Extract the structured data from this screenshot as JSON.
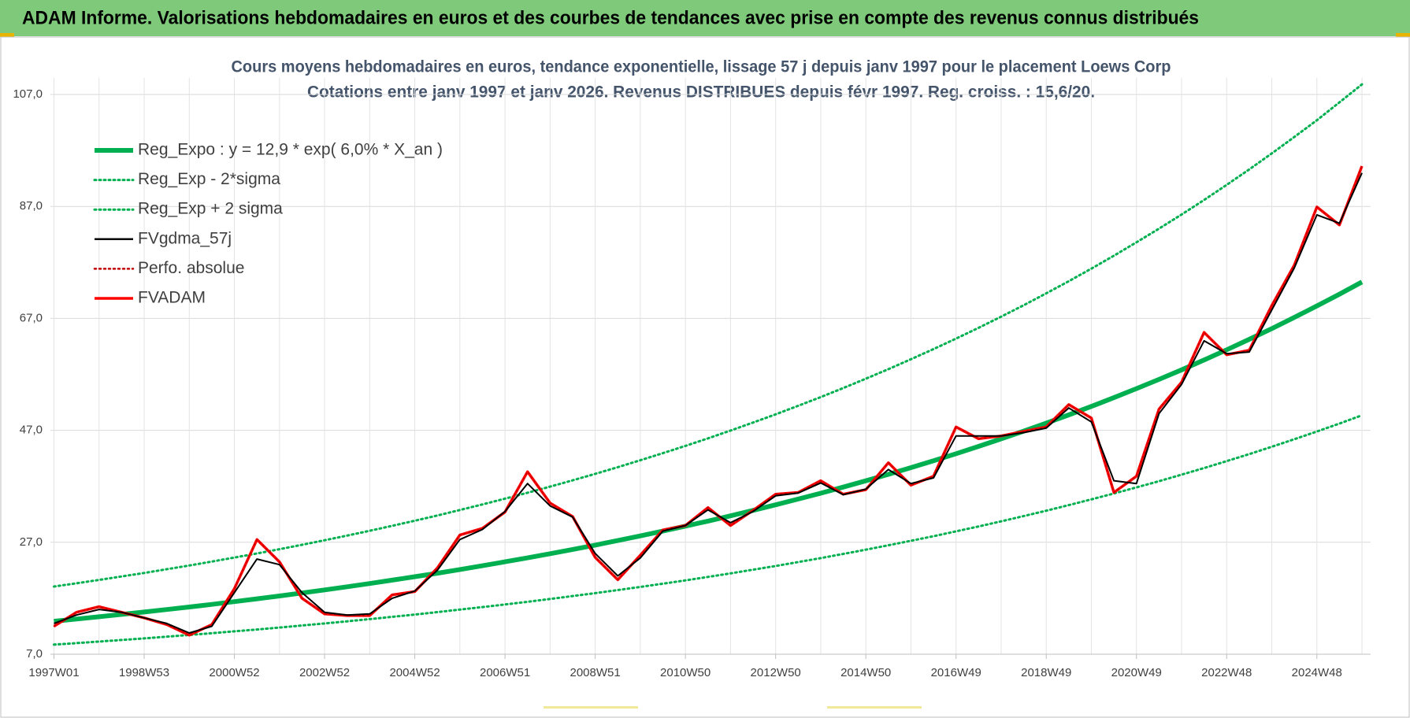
{
  "header": {
    "title": "ADAM Informe. Valorisations hebdomadaires en euros et des courbes de tendances avec prise en compte des revenus connus distribués"
  },
  "chart_data": {
    "type": "line",
    "title": "Cours moyens hebdomadaires en euros, tendance exponentielle, lissage 57 j depuis janv 1997 pour le placement Loews Corp",
    "subtitle": "Cotations entre janv 1997 et janv 2026. Revenus DISTRIBUES depuis févr 1997. Reg. croiss. : 15,6/20.",
    "categories": [
      "1997W01",
      null,
      null,
      null,
      "1998W53",
      null,
      null,
      null,
      "2000W52",
      null,
      null,
      null,
      "2002W52",
      null,
      null,
      null,
      "2004W52",
      null,
      null,
      null,
      "2006W51",
      null,
      null,
      null,
      "2008W51",
      null,
      null,
      null,
      "2010W50",
      null,
      null,
      null,
      "2012W50",
      null,
      null,
      null,
      "2014W50",
      null,
      null,
      null,
      "2016W49",
      null,
      null,
      null,
      "2018W49",
      null,
      null,
      null,
      "2020W49",
      null,
      null,
      null,
      "2022W48",
      null,
      null,
      null,
      "2024W48",
      null,
      null
    ],
    "ylim": [
      7,
      110
    ],
    "yticks": [
      {
        "value": 7,
        "label": "7,0"
      },
      {
        "value": 27,
        "label": "27,0"
      },
      {
        "value": 47,
        "label": "47,0"
      },
      {
        "value": 67,
        "label": "67,0"
      },
      {
        "value": 87,
        "label": "87,0"
      },
      {
        "value": 107,
        "label": "107,0"
      }
    ],
    "grid": true,
    "legend": "top-left",
    "series": [
      {
        "name": "Reg_Expo : y = 12,9 * exp( 6,0% *  X_an )",
        "color": "#00b050",
        "line_style": "solid",
        "values": [
          12.9,
          13.29,
          13.7,
          14.12,
          14.54,
          14.99,
          15.44,
          15.91,
          16.4,
          16.9,
          17.41,
          17.94,
          18.49,
          19.05,
          19.63,
          20.23,
          20.85,
          21.48,
          22.14,
          22.81,
          23.51,
          24.22,
          24.96,
          25.72,
          26.5,
          27.31,
          28.14,
          29,
          29.88,
          30.79,
          31.73,
          32.7,
          33.69,
          34.72,
          35.77,
          36.86,
          37.99,
          39.14,
          40.34,
          41.56,
          42.83,
          44.13,
          45.48,
          46.86,
          48.29,
          49.76,
          51.28,
          52.84,
          54.45,
          56.1,
          57.81,
          59.57,
          61.39,
          63.26,
          65.18,
          67.17,
          69.22,
          71.32,
          73.5
        ]
      },
      {
        "name": "Reg_Exp - 2*sigma",
        "color": "#00b050",
        "line_style": "dotted",
        "values": [
          8.72,
          8.98,
          9.26,
          9.55,
          9.83,
          10.13,
          10.44,
          10.76,
          11.09,
          11.42,
          11.77,
          12.13,
          12.5,
          12.88,
          13.27,
          13.68,
          14.09,
          14.52,
          14.97,
          15.42,
          15.89,
          16.37,
          16.87,
          17.39,
          17.91,
          18.46,
          19.02,
          19.6,
          20.2,
          20.81,
          21.45,
          22.11,
          22.77,
          23.47,
          24.18,
          24.92,
          25.68,
          26.46,
          27.27,
          28.09,
          28.95,
          29.83,
          30.74,
          31.68,
          32.64,
          33.64,
          34.67,
          35.72,
          36.81,
          37.92,
          39.08,
          40.27,
          41.5,
          42.76,
          44.06,
          45.41,
          46.79,
          48.21,
          49.69
        ]
      },
      {
        "name": "Reg_Exp + 2 sigma",
        "color": "#00b050",
        "line_style": "dotted",
        "values": [
          19.09,
          19.67,
          20.28,
          20.9,
          21.52,
          22.19,
          22.85,
          23.55,
          24.27,
          25.01,
          25.77,
          26.55,
          27.37,
          28.19,
          29.05,
          29.94,
          30.86,
          31.79,
          32.77,
          33.76,
          34.79,
          35.85,
          36.94,
          38.07,
          39.22,
          40.42,
          41.65,
          42.92,
          44.22,
          45.57,
          46.96,
          48.4,
          49.86,
          51.39,
          52.94,
          54.55,
          56.23,
          57.93,
          59.7,
          61.51,
          63.39,
          65.31,
          67.31,
          69.35,
          71.47,
          73.64,
          75.89,
          78.2,
          80.59,
          83.03,
          85.56,
          88.16,
          90.86,
          93.62,
          96.47,
          99.41,
          102.4,
          105.6,
          108.8
        ]
      },
      {
        "name": "FVgdma_57j",
        "color": "#000000",
        "line_style": "solid",
        "values": [
          12.5,
          14,
          15,
          14.5,
          13.5,
          12.5,
          10.8,
          12,
          18,
          24,
          23,
          18,
          14.5,
          14,
          14.2,
          17,
          18.3,
          22,
          27.5,
          29.3,
          32.5,
          37.5,
          33.5,
          31.5,
          25,
          21,
          24.2,
          29,
          30,
          32.8,
          30.5,
          32.5,
          35.3,
          35.8,
          37.6,
          35.5,
          36.5,
          40,
          37.5,
          38.5,
          46,
          46,
          46,
          46.6,
          47.4,
          51,
          48.5,
          38,
          37.5,
          50,
          55.2,
          63,
          60.7,
          61,
          68.5,
          76,
          85.5,
          84,
          93
        ]
      },
      {
        "name": "Perfo. absolue",
        "color": "#c00000",
        "line_style": "dotted",
        "values": [
          12,
          14.5,
          15.5,
          14.5,
          13.5,
          12.3,
          10.4,
          12.3,
          18.7,
          27.5,
          23.5,
          17,
          14.2,
          13.9,
          13.9,
          17.6,
          18.2,
          22.4,
          28.3,
          29.5,
          32.4,
          39.6,
          34,
          31.6,
          24.3,
          20.3,
          24.7,
          29.2,
          30,
          33.2,
          30,
          32.7,
          35.6,
          35.9,
          38,
          35.6,
          36.4,
          41.2,
          37.2,
          38.8,
          47.6,
          45.5,
          46,
          46.8,
          47.6,
          51.6,
          49.2,
          35.9,
          38.8,
          50.8,
          55.6,
          64.5,
          60.5,
          61.3,
          69.3,
          76.5,
          86.9,
          83.7,
          94.2
        ]
      },
      {
        "name": "FVADAM",
        "color": "#ff0000",
        "line_style": "solid",
        "values": [
          12,
          14.5,
          15.5,
          14.5,
          13.5,
          12.3,
          10.4,
          12.3,
          18.7,
          27.5,
          23.5,
          17,
          14.2,
          13.9,
          13.9,
          17.6,
          18.2,
          22.4,
          28.3,
          29.5,
          32.4,
          39.6,
          34,
          31.6,
          24.3,
          20.3,
          24.7,
          29.2,
          30,
          33.2,
          30,
          32.7,
          35.6,
          35.9,
          38,
          35.6,
          36.4,
          41.2,
          37.2,
          38.8,
          47.6,
          45.5,
          46,
          46.8,
          47.6,
          51.6,
          49.2,
          35.9,
          38.8,
          50.8,
          55.6,
          64.5,
          60.5,
          61.3,
          69.3,
          76.5,
          86.9,
          83.7,
          94.2
        ]
      }
    ]
  }
}
